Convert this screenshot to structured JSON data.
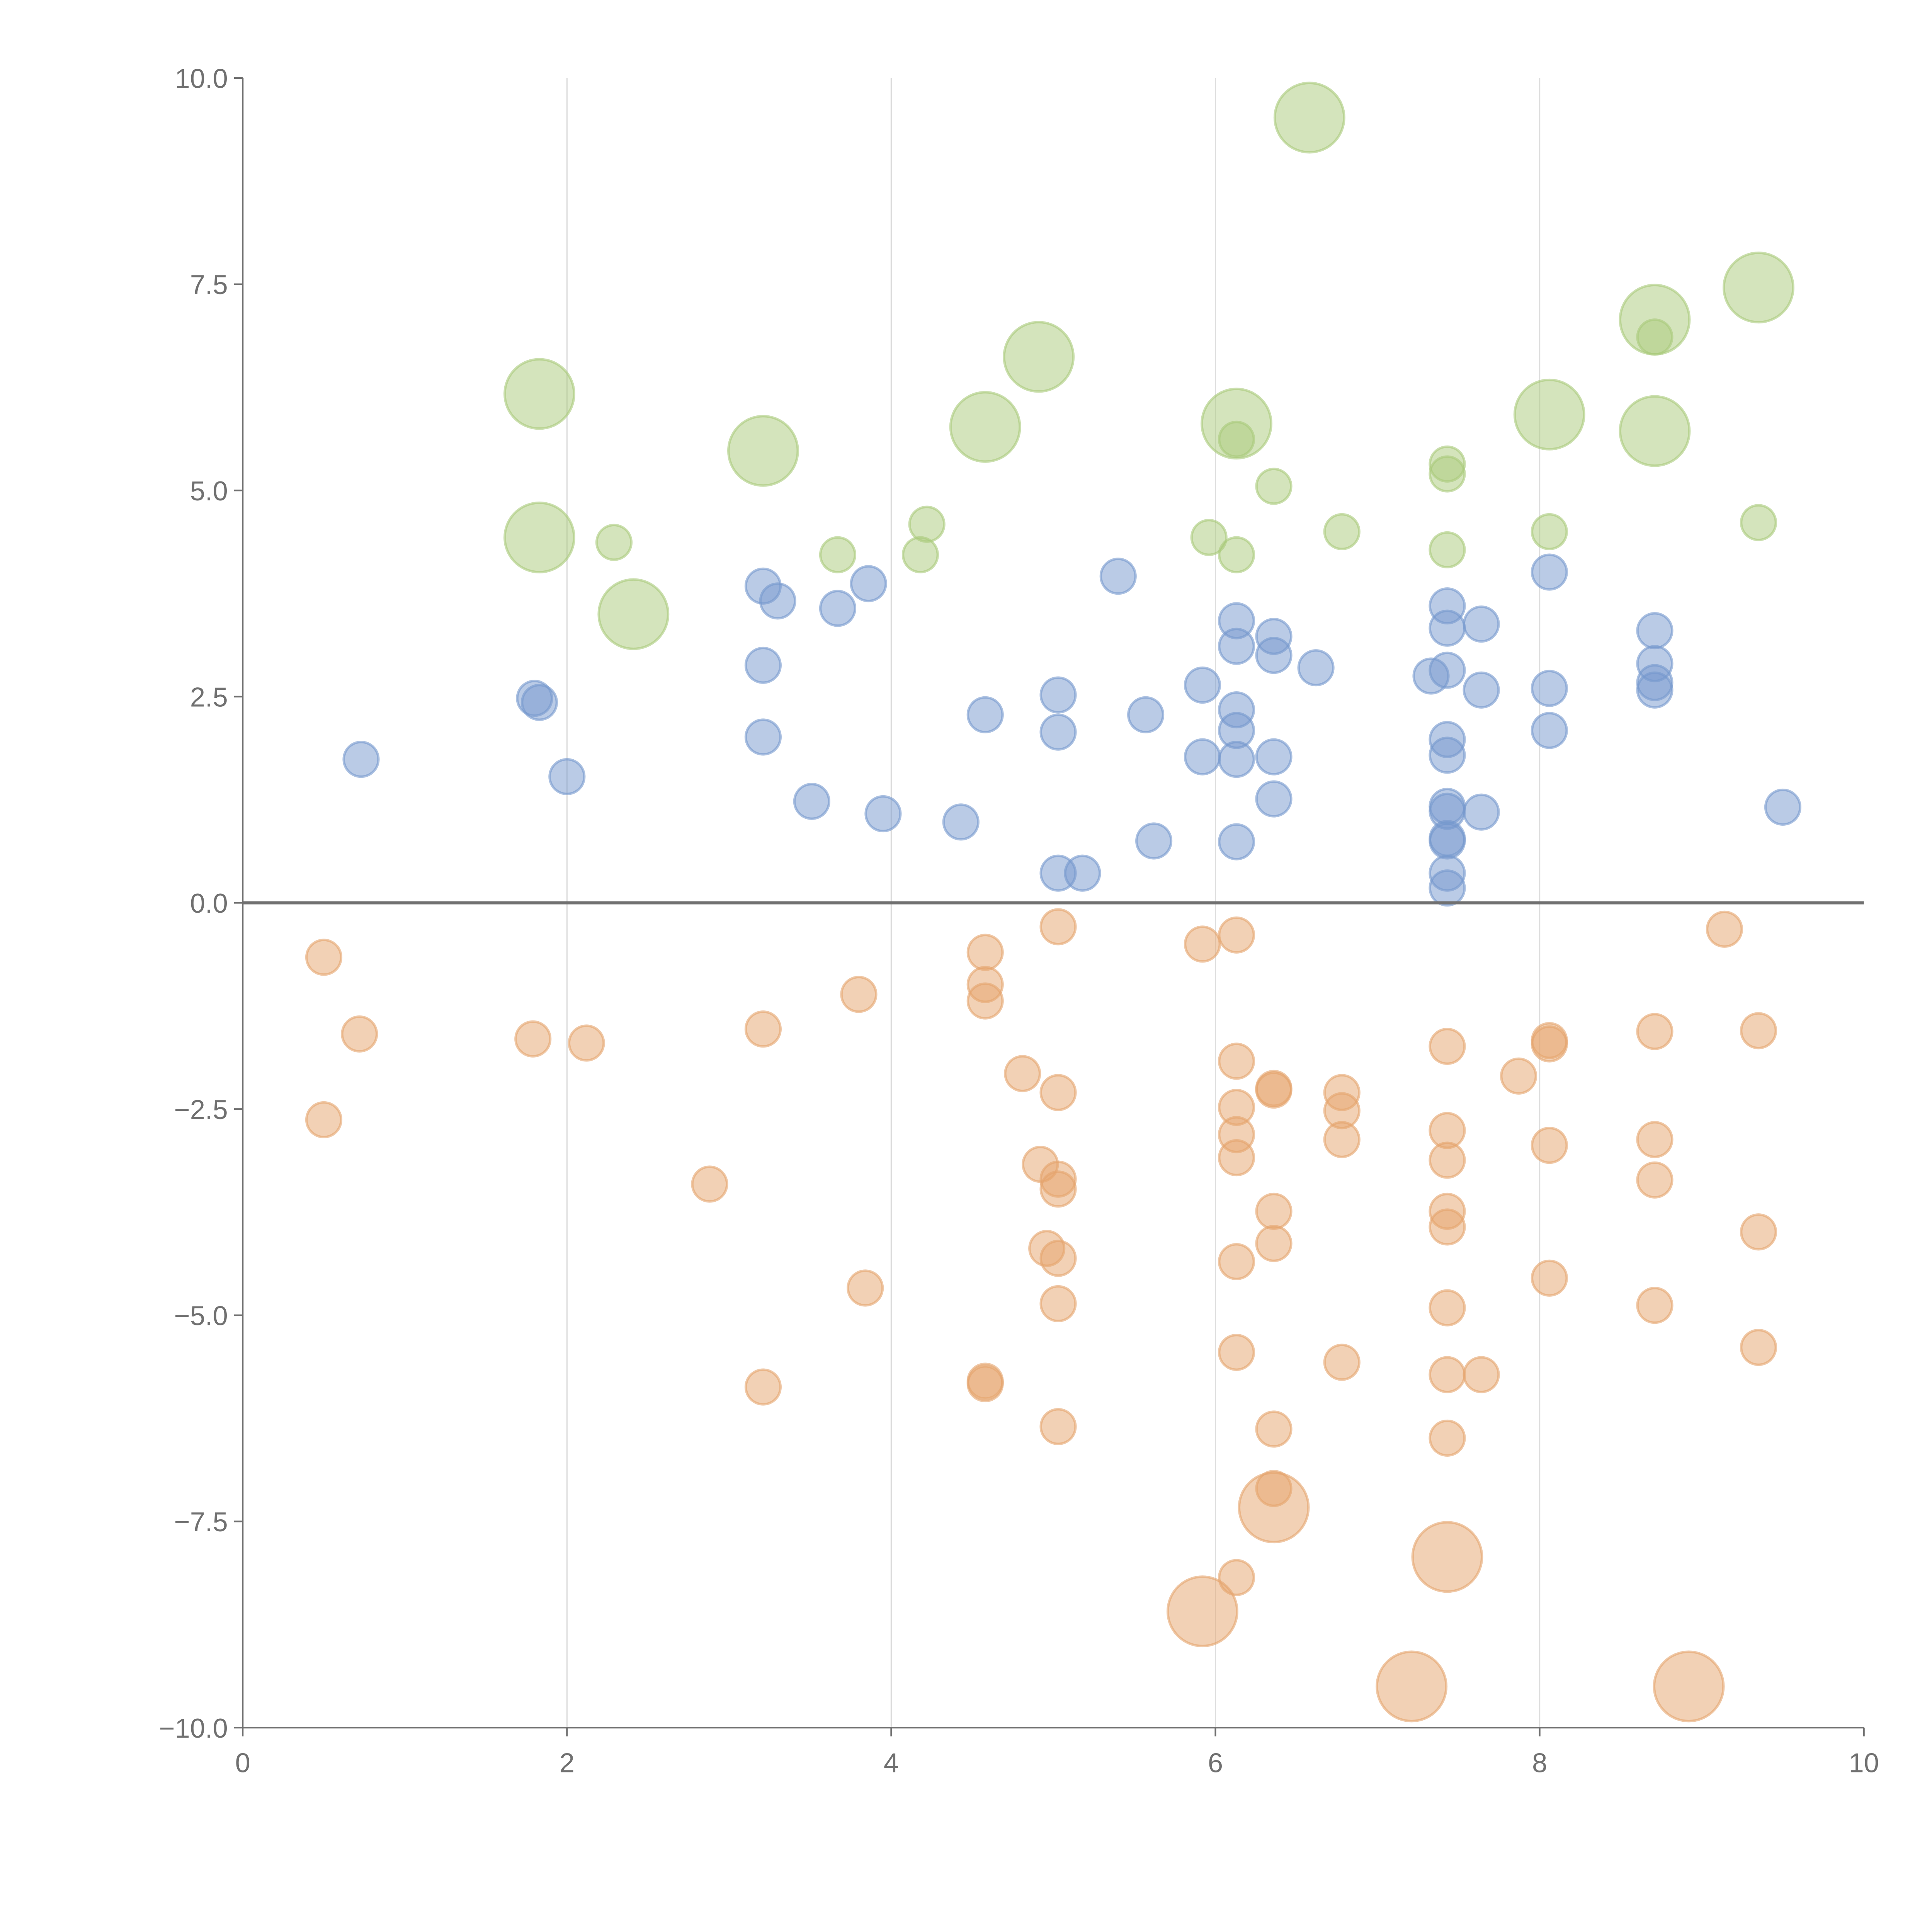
{
  "chart_data": {
    "type": "scatter",
    "title": "",
    "xlabel": "",
    "ylabel": "",
    "xlim": [
      0,
      10
    ],
    "ylim": [
      -10,
      10
    ],
    "x_ticks": [
      "0",
      "2",
      "4",
      "6",
      "8",
      "10"
    ],
    "y_ticks": [
      "10.0",
      "7.5",
      "5.0",
      "2.5",
      "0.0",
      "−2.5",
      "−5.0",
      "−7.5",
      "−10.0"
    ],
    "x_tick_values": [
      0,
      2,
      4,
      6,
      8,
      10
    ],
    "y_tick_values": [
      10,
      7.5,
      5,
      2.5,
      0,
      -2.5,
      -5,
      -7.5,
      -10
    ],
    "grid": "vertical",
    "point_format": [
      "x",
      "y",
      "size"
    ],
    "series": [
      {
        "name": "green",
        "color": "#a9c97a",
        "points": [
          [
            6.58,
            9.52,
            2
          ],
          [
            9.35,
            7.46,
            2
          ],
          [
            8.71,
            7.07,
            2
          ],
          [
            1.83,
            6.17,
            2
          ],
          [
            4.91,
            6.62,
            2
          ],
          [
            3.21,
            5.48,
            2
          ],
          [
            4.58,
            5.77,
            2
          ],
          [
            6.13,
            5.81,
            2
          ],
          [
            8.06,
            5.92,
            2
          ],
          [
            8.71,
            5.72,
            2
          ],
          [
            1.83,
            4.43,
            2
          ],
          [
            2.41,
            3.5,
            2
          ],
          [
            8.71,
            6.86,
            1
          ],
          [
            6.13,
            5.62,
            1
          ],
          [
            7.43,
            5.32,
            1
          ],
          [
            7.43,
            5.2,
            1
          ],
          [
            6.36,
            5.05,
            1
          ],
          [
            2.29,
            4.37,
            1
          ],
          [
            3.67,
            4.22,
            1
          ],
          [
            4.22,
            4.59,
            1
          ],
          [
            4.18,
            4.22,
            1
          ],
          [
            5.96,
            4.43,
            1
          ],
          [
            6.13,
            4.22,
            1
          ],
          [
            6.78,
            4.5,
            1
          ],
          [
            7.43,
            4.28,
            1
          ],
          [
            8.06,
            4.5,
            1
          ],
          [
            9.35,
            4.61,
            1
          ]
        ]
      },
      {
        "name": "blue",
        "color": "#7598cd",
        "points": [
          [
            0.73,
            1.74,
            1
          ],
          [
            1.8,
            2.48,
            1
          ],
          [
            1.83,
            2.43,
            1
          ],
          [
            2.0,
            1.53,
            1
          ],
          [
            3.21,
            3.84,
            1
          ],
          [
            3.3,
            3.66,
            1
          ],
          [
            3.21,
            2.88,
            1
          ],
          [
            3.21,
            2.01,
            1
          ],
          [
            3.67,
            3.57,
            1
          ],
          [
            3.86,
            3.87,
            1
          ],
          [
            3.51,
            1.23,
            1
          ],
          [
            3.95,
            1.08,
            1
          ],
          [
            4.43,
            0.98,
            1
          ],
          [
            4.58,
            2.28,
            1
          ],
          [
            5.03,
            2.52,
            1
          ],
          [
            5.03,
            2.07,
            1
          ],
          [
            5.03,
            0.36,
            1
          ],
          [
            5.18,
            0.36,
            1
          ],
          [
            5.4,
            3.96,
            1
          ],
          [
            5.57,
            2.28,
            1
          ],
          [
            5.62,
            0.75,
            1
          ],
          [
            5.92,
            2.64,
            1
          ],
          [
            5.92,
            1.77,
            1
          ],
          [
            6.13,
            3.42,
            1
          ],
          [
            6.13,
            3.11,
            1
          ],
          [
            6.13,
            2.34,
            1
          ],
          [
            6.13,
            2.09,
            1
          ],
          [
            6.13,
            1.74,
            1
          ],
          [
            6.13,
            0.74,
            1
          ],
          [
            6.36,
            3.23,
            1
          ],
          [
            6.36,
            3.0,
            1
          ],
          [
            6.36,
            1.77,
            1
          ],
          [
            6.36,
            1.26,
            1
          ],
          [
            6.62,
            2.85,
            1
          ],
          [
            7.33,
            2.75,
            1
          ],
          [
            7.43,
            3.6,
            1
          ],
          [
            7.43,
            3.33,
            1
          ],
          [
            7.43,
            2.82,
            1
          ],
          [
            7.43,
            1.98,
            1
          ],
          [
            7.43,
            1.79,
            1
          ],
          [
            7.43,
            1.17,
            1
          ],
          [
            7.43,
            1.11,
            1
          ],
          [
            7.43,
            0.78,
            1
          ],
          [
            7.43,
            0.75,
            1
          ],
          [
            7.43,
            0.36,
            1
          ],
          [
            7.43,
            0.18,
            1
          ],
          [
            7.64,
            3.38,
            1
          ],
          [
            7.64,
            2.58,
            1
          ],
          [
            7.64,
            1.1,
            1
          ],
          [
            8.06,
            4.01,
            1
          ],
          [
            8.06,
            2.6,
            1
          ],
          [
            8.06,
            2.09,
            1
          ],
          [
            8.71,
            3.3,
            1
          ],
          [
            8.71,
            2.9,
            1
          ],
          [
            8.71,
            2.67,
            1
          ],
          [
            8.71,
            2.58,
            1
          ],
          [
            9.5,
            1.16,
            1
          ]
        ]
      },
      {
        "name": "orange",
        "color": "#e5a46c",
        "points": [
          [
            0.5,
            -0.66,
            1
          ],
          [
            0.72,
            -1.59,
            1
          ],
          [
            0.5,
            -2.63,
            1
          ],
          [
            1.79,
            -1.65,
            1
          ],
          [
            2.12,
            -1.7,
            1
          ],
          [
            2.88,
            -3.41,
            1
          ],
          [
            3.21,
            -1.53,
            1
          ],
          [
            3.21,
            -5.87,
            1
          ],
          [
            3.8,
            -1.11,
            1
          ],
          [
            3.84,
            -4.67,
            1
          ],
          [
            4.58,
            -0.6,
            1
          ],
          [
            4.58,
            -0.99,
            1
          ],
          [
            4.58,
            -1.19,
            1
          ],
          [
            4.58,
            -5.8,
            1
          ],
          [
            4.58,
            -5.83,
            1
          ],
          [
            4.81,
            -2.07,
            1
          ],
          [
            4.92,
            -3.17,
            1
          ],
          [
            4.96,
            -4.19,
            1
          ],
          [
            5.03,
            -0.29,
            1
          ],
          [
            5.03,
            -2.3,
            1
          ],
          [
            5.03,
            -3.35,
            1
          ],
          [
            5.03,
            -3.47,
            1
          ],
          [
            5.03,
            -4.31,
            1
          ],
          [
            5.03,
            -4.86,
            1
          ],
          [
            5.03,
            -6.35,
            1
          ],
          [
            5.92,
            -0.5,
            1
          ],
          [
            6.13,
            -0.39,
            1
          ],
          [
            6.13,
            -1.92,
            1
          ],
          [
            6.13,
            -2.48,
            1
          ],
          [
            6.13,
            -2.81,
            1
          ],
          [
            6.13,
            -3.09,
            1
          ],
          [
            6.13,
            -4.35,
            1
          ],
          [
            6.13,
            -5.45,
            1
          ],
          [
            6.13,
            -8.18,
            1
          ],
          [
            6.36,
            -2.25,
            1
          ],
          [
            6.36,
            -2.27,
            1
          ],
          [
            6.36,
            -3.74,
            1
          ],
          [
            6.36,
            -4.13,
            1
          ],
          [
            6.36,
            -6.38,
            1
          ],
          [
            6.36,
            -7.1,
            1
          ],
          [
            6.78,
            -2.3,
            1
          ],
          [
            6.78,
            -2.52,
            1
          ],
          [
            6.78,
            -2.87,
            1
          ],
          [
            6.78,
            -5.57,
            1
          ],
          [
            7.43,
            -1.74,
            1
          ],
          [
            7.43,
            -2.76,
            1
          ],
          [
            7.43,
            -3.12,
            1
          ],
          [
            7.43,
            -3.74,
            1
          ],
          [
            7.43,
            -3.93,
            1
          ],
          [
            7.43,
            -4.91,
            1
          ],
          [
            7.43,
            -5.72,
            1
          ],
          [
            7.43,
            -6.49,
            1
          ],
          [
            7.64,
            -5.72,
            1
          ],
          [
            7.87,
            -2.1,
            1
          ],
          [
            8.06,
            -1.67,
            1
          ],
          [
            8.06,
            -1.71,
            1
          ],
          [
            8.06,
            -2.94,
            1
          ],
          [
            8.06,
            -4.55,
            1
          ],
          [
            8.71,
            -1.56,
            1
          ],
          [
            8.71,
            -2.87,
            1
          ],
          [
            8.71,
            -3.36,
            1
          ],
          [
            8.71,
            -4.88,
            1
          ],
          [
            9.14,
            -0.32,
            1
          ],
          [
            9.35,
            -1.55,
            1
          ],
          [
            9.35,
            -3.99,
            1
          ],
          [
            9.35,
            -5.39,
            1
          ],
          [
            5.92,
            -8.59,
            2
          ],
          [
            6.36,
            -7.33,
            2
          ],
          [
            7.43,
            -7.93,
            2
          ],
          [
            7.21,
            -9.5,
            2
          ],
          [
            8.92,
            -9.5,
            2
          ]
        ]
      }
    ]
  }
}
